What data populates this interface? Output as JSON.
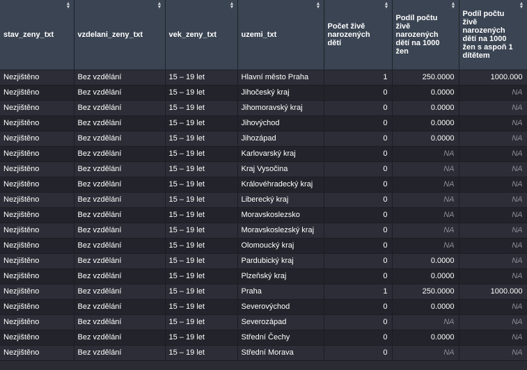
{
  "columns": [
    {
      "label": "stav_zeny_txt"
    },
    {
      "label": "vzdelani_zeny_txt"
    },
    {
      "label": "vek_zeny_txt"
    },
    {
      "label": "uzemi_txt"
    },
    {
      "label": "Počet živě narozených dětí"
    },
    {
      "label": "Podíl počtu živě narozených dětí na 1000 žen"
    },
    {
      "label": "Podíl počtu živě narozených dětí na 1000 žen s aspoň 1 dítětem"
    }
  ],
  "rows": [
    [
      "Nezjištěno",
      "Bez vzdělání",
      "15 – 19 let",
      "Hlavní město Praha",
      "1",
      "250.0000",
      "1000.000"
    ],
    [
      "Nezjištěno",
      "Bez vzdělání",
      "15 – 19 let",
      "Jihočeský kraj",
      "0",
      "0.0000",
      "NA"
    ],
    [
      "Nezjištěno",
      "Bez vzdělání",
      "15 – 19 let",
      "Jihomoravský kraj",
      "0",
      "0.0000",
      "NA"
    ],
    [
      "Nezjištěno",
      "Bez vzdělání",
      "15 – 19 let",
      "Jihovýchod",
      "0",
      "0.0000",
      "NA"
    ],
    [
      "Nezjištěno",
      "Bez vzdělání",
      "15 – 19 let",
      "Jihozápad",
      "0",
      "0.0000",
      "NA"
    ],
    [
      "Nezjištěno",
      "Bez vzdělání",
      "15 – 19 let",
      "Karlovarský kraj",
      "0",
      "NA",
      "NA"
    ],
    [
      "Nezjištěno",
      "Bez vzdělání",
      "15 – 19 let",
      "Kraj Vysočina",
      "0",
      "NA",
      "NA"
    ],
    [
      "Nezjištěno",
      "Bez vzdělání",
      "15 – 19 let",
      "Královéhradecký kraj",
      "0",
      "NA",
      "NA"
    ],
    [
      "Nezjištěno",
      "Bez vzdělání",
      "15 – 19 let",
      "Liberecký kraj",
      "0",
      "NA",
      "NA"
    ],
    [
      "Nezjištěno",
      "Bez vzdělání",
      "15 – 19 let",
      "Moravskoslezsko",
      "0",
      "NA",
      "NA"
    ],
    [
      "Nezjištěno",
      "Bez vzdělání",
      "15 – 19 let",
      "Moravskoslezský kraj",
      "0",
      "NA",
      "NA"
    ],
    [
      "Nezjištěno",
      "Bez vzdělání",
      "15 – 19 let",
      "Olomoucký kraj",
      "0",
      "NA",
      "NA"
    ],
    [
      "Nezjištěno",
      "Bez vzdělání",
      "15 – 19 let",
      "Pardubický kraj",
      "0",
      "0.0000",
      "NA"
    ],
    [
      "Nezjištěno",
      "Bez vzdělání",
      "15 – 19 let",
      "Plzeňský kraj",
      "0",
      "0.0000",
      "NA"
    ],
    [
      "Nezjištěno",
      "Bez vzdělání",
      "15 – 19 let",
      "Praha",
      "1",
      "250.0000",
      "1000.000"
    ],
    [
      "Nezjištěno",
      "Bez vzdělání",
      "15 – 19 let",
      "Severovýchod",
      "0",
      "0.0000",
      "NA"
    ],
    [
      "Nezjištěno",
      "Bez vzdělání",
      "15 – 19 let",
      "Severozápad",
      "0",
      "NA",
      "NA"
    ],
    [
      "Nezjištěno",
      "Bez vzdělání",
      "15 – 19 let",
      "Střední Čechy",
      "0",
      "0.0000",
      "NA"
    ],
    [
      "Nezjištěno",
      "Bez vzdělání",
      "15 – 19 let",
      "Střední Morava",
      "0",
      "NA",
      "NA"
    ]
  ],
  "na_text": "NA",
  "sort_icon": {
    "name": "sort-arrows-icon",
    "up": "▲",
    "down": "▼"
  },
  "colors": {
    "header_bg": "#3a4452",
    "row_odd": "#2c2d36",
    "row_even": "#23242b",
    "na_text": "#8d8f97"
  }
}
